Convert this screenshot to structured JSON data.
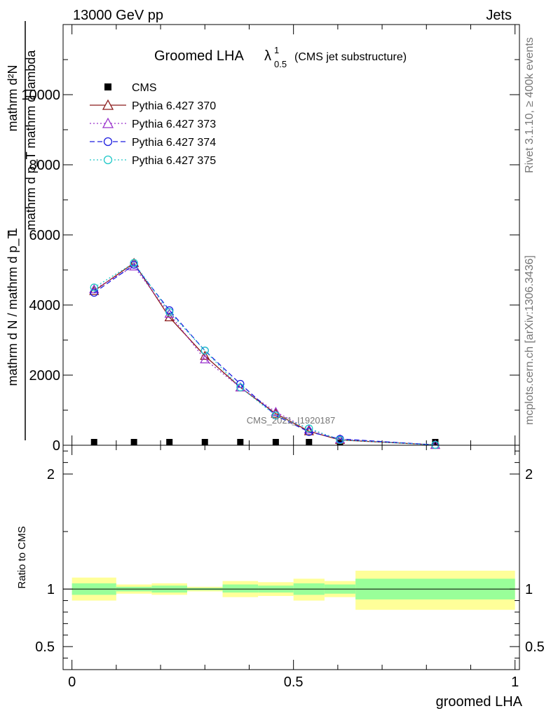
{
  "header": {
    "left": "13000 GeV pp",
    "right": "Jets"
  },
  "side_labels": {
    "rivet": "Rivet 3.1.10, ≥ 400k events",
    "mcplots": "mcplots.cern.ch [arXiv:1306.3436]"
  },
  "watermark": "CMS_2021_I1920187",
  "chart_data": [
    {
      "type": "line",
      "panel": "main",
      "title_main": "Groomed LHA",
      "title_symbol": "λ",
      "title_sup": "1",
      "title_sub": "0.5",
      "title_note": "(CMS jet substructure)",
      "ylabel_numerator": "mathrm d²N",
      "ylabel_denominator": "mathrm d p_T mathrm d lambda",
      "ylabel_prefix": "1",
      "ylabel_prefix_denominator": "mathrm d N / mathrm d p_T",
      "ylim": [
        0,
        12000
      ],
      "yticks": [
        0,
        2000,
        4000,
        6000,
        8000,
        10000
      ],
      "ytick_labels": [
        "0",
        "2000",
        "4000",
        "6000",
        "8000",
        "10000"
      ],
      "xlim": [
        -0.02,
        1.01
      ],
      "x": [
        0.05,
        0.14,
        0.22,
        0.3,
        0.38,
        0.46,
        0.535,
        0.605,
        0.82
      ],
      "legend_position": "top-left",
      "series": [
        {
          "name": "CMS",
          "color": "#000000",
          "marker": "square",
          "line": "none",
          "values": [
            0,
            0,
            0,
            0,
            0,
            0,
            0,
            0,
            0
          ]
        },
        {
          "name": "Pythia 6.427 370",
          "color": "#8b1a1a",
          "marker": "triangle",
          "line": "solid",
          "values": [
            4400,
            5200,
            3650,
            2550,
            1650,
            900,
            400,
            150,
            10
          ]
        },
        {
          "name": "Pythia 6.427 373",
          "color": "#9932cc",
          "marker": "triangle",
          "line": "dotted",
          "values": [
            4450,
            5100,
            3750,
            2450,
            1650,
            950,
            450,
            170,
            10
          ]
        },
        {
          "name": "Pythia 6.427 374",
          "color": "#1e1ee0",
          "marker": "circle",
          "line": "dashed",
          "values": [
            4350,
            5150,
            3850,
            2700,
            1750,
            850,
            380,
            180,
            10
          ]
        },
        {
          "name": "Pythia 6.427 375",
          "color": "#20c8c8",
          "marker": "circle",
          "line": "dotted",
          "values": [
            4500,
            5200,
            3800,
            2700,
            1650,
            850,
            480,
            150,
            10
          ]
        }
      ]
    },
    {
      "type": "area",
      "panel": "ratio",
      "ylabel": "Ratio to CMS",
      "xlabel": "groomed LHA",
      "ylim": [
        0.3,
        2.25
      ],
      "yticks": [
        0.5,
        1,
        2
      ],
      "ytick_labels": [
        "0.5",
        "1",
        "2"
      ],
      "xticks": [
        0,
        0.5,
        1
      ],
      "xtick_labels": [
        "0",
        "0.5",
        "1"
      ],
      "bins": [
        {
          "lo": 0.0,
          "hi": 0.1,
          "inner": [
            0.95,
            1.05
          ],
          "outer": [
            0.9,
            1.1
          ]
        },
        {
          "lo": 0.1,
          "hi": 0.18,
          "inner": [
            0.98,
            1.02
          ],
          "outer": [
            0.96,
            1.04
          ]
        },
        {
          "lo": 0.18,
          "hi": 0.26,
          "inner": [
            0.97,
            1.03
          ],
          "outer": [
            0.95,
            1.05
          ]
        },
        {
          "lo": 0.26,
          "hi": 0.34,
          "inner": [
            0.99,
            1.01
          ],
          "outer": [
            0.98,
            1.02
          ]
        },
        {
          "lo": 0.34,
          "hi": 0.42,
          "inner": [
            0.97,
            1.04
          ],
          "outer": [
            0.93,
            1.07
          ]
        },
        {
          "lo": 0.42,
          "hi": 0.5,
          "inner": [
            0.97,
            1.03
          ],
          "outer": [
            0.94,
            1.06
          ]
        },
        {
          "lo": 0.5,
          "hi": 0.57,
          "inner": [
            0.95,
            1.05
          ],
          "outer": [
            0.9,
            1.09
          ]
        },
        {
          "lo": 0.57,
          "hi": 0.64,
          "inner": [
            0.96,
            1.04
          ],
          "outer": [
            0.93,
            1.07
          ]
        },
        {
          "lo": 0.64,
          "hi": 1.0,
          "inner": [
            0.91,
            1.09
          ],
          "outer": [
            0.82,
            1.16
          ]
        }
      ],
      "inner_color": "#99ff99",
      "outer_color": "#ffff99"
    }
  ]
}
